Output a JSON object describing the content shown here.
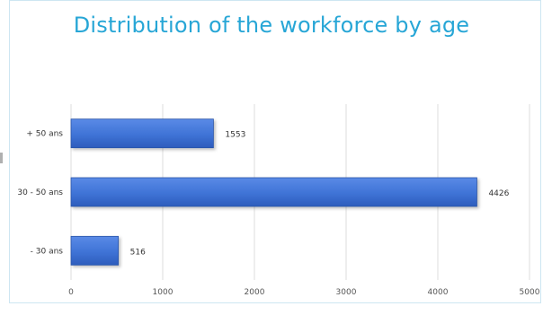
{
  "chart_data": {
    "type": "bar",
    "orientation": "horizontal",
    "title": "Distribution of the workforce by age",
    "categories": [
      "+ 50 ans",
      "30 - 50 ans",
      "- 30 ans"
    ],
    "values": [
      1553,
      4426,
      516
    ],
    "xlim": [
      0,
      5000
    ],
    "xticks": [
      "0",
      "1000",
      "2000",
      "3000",
      "4000",
      "5000"
    ],
    "grid": true,
    "colors": {
      "bar": "#3f73d6",
      "bar_edge": "#2a55a8",
      "title": "#27a6d6",
      "grid": "#dddddd"
    }
  }
}
